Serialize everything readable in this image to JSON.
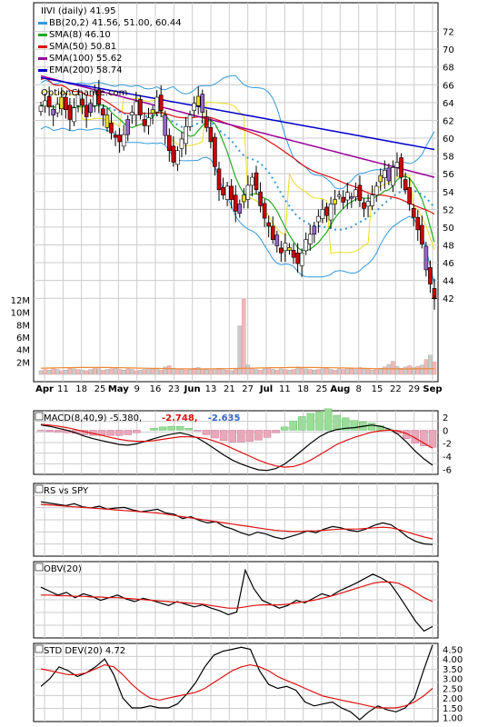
{
  "chart_data": [
    {
      "type": "candlestick",
      "title": "IIVI (daily) 41.95",
      "watermark": "OptionChance.com",
      "legend": [
        {
          "label": "BB(20,2) 41.56, 51.00, 60.44",
          "color": "#3399dd"
        },
        {
          "label": "SMA(8) 46.10",
          "color": "#22aa22"
        },
        {
          "label": "SMA(50) 50.81",
          "color": "#dd1111"
        },
        {
          "label": "SMA(100) 55.62",
          "color": "#990099"
        },
        {
          "label": "EMA(200) 58.74",
          "color": "#0000cc"
        }
      ],
      "legend_placement": "top-left",
      "price_ylim": [
        41,
        74
      ],
      "price_ticks": [
        42,
        44,
        46,
        48,
        50,
        52,
        54,
        56,
        58,
        60,
        62,
        64,
        66,
        68,
        70,
        72
      ],
      "volume_ticks": [
        "2M",
        "4M",
        "6M",
        "8M",
        "10M",
        "12M"
      ],
      "x_tick_labels": [
        "Apr",
        "11",
        "18",
        "25",
        "May",
        "9",
        "16",
        "23",
        "Jun",
        "13",
        "21",
        "27",
        "Jul",
        "11",
        "18",
        "25",
        "Aug",
        "8",
        "15",
        "22",
        "29",
        "Sep"
      ],
      "month_labels": [
        "Apr",
        "May",
        "Jun",
        "Jul",
        "Aug",
        "Sep"
      ],
      "grid": true,
      "series_close": [
        63.6,
        64.2,
        63.5,
        62.6,
        63.8,
        64.6,
        63.2,
        62.1,
        63.4,
        64.9,
        63.7,
        62.4,
        63.9,
        65.2,
        63.8,
        62.6,
        61.2,
        60.6,
        60.1,
        59.6,
        60.4,
        62.1,
        62.9,
        64.1,
        62.6,
        61.4,
        62.3,
        63.2,
        64.6,
        63.1,
        60.3,
        58.6,
        57.3,
        58.6,
        59.9,
        61.3,
        62.6,
        63.9,
        64.7,
        62.9,
        61.2,
        59.6,
        56.8,
        54.2,
        53.6,
        54.6,
        53.1,
        51.8,
        52.6,
        53.6,
        54.7,
        55.6,
        54.2,
        52.4,
        51.0,
        50.1,
        48.6,
        47.9,
        47.1,
        48.2,
        47.4,
        46.6,
        45.9,
        47.1,
        48.6,
        49.2,
        50.1,
        51.2,
        52.0,
        51.3,
        52.6,
        53.1,
        53.6,
        52.8,
        53.9,
        53.4,
        54.2,
        53.0,
        52.1,
        52.9,
        53.6,
        54.6,
        55.8,
        56.4,
        55.2,
        56.7,
        57.3,
        55.6,
        54.2,
        52.6,
        51.1,
        49.7,
        48.1,
        45.2,
        43.6,
        41.95
      ],
      "volume_m": [
        0.6,
        0.8,
        0.7,
        0.9,
        0.8,
        0.6,
        0.7,
        1.0,
        0.9,
        0.8,
        0.7,
        0.6,
        0.8,
        1.1,
        0.9,
        0.7,
        0.8,
        0.9,
        1.0,
        0.8,
        0.7,
        0.9,
        0.8,
        0.6,
        0.7,
        0.8,
        1.0,
        0.9,
        0.8,
        0.7,
        1.2,
        1.4,
        1.0,
        0.9,
        0.8,
        0.7,
        0.9,
        1.0,
        1.1,
        0.9,
        0.8,
        0.7,
        0.9,
        1.0,
        0.8,
        0.7,
        0.6,
        0.9,
        7.8,
        12.1,
        1.5,
        0.9,
        0.8,
        0.7,
        0.9,
        1.0,
        0.8,
        0.7,
        0.9,
        0.8,
        0.7,
        0.8,
        1.2,
        1.0,
        0.9,
        0.8,
        0.7,
        0.8,
        0.9,
        1.0,
        0.8,
        0.7,
        0.9,
        0.8,
        1.0,
        0.9,
        0.8,
        1.1,
        0.9,
        0.8,
        0.7,
        0.9,
        1.0,
        1.2,
        1.6,
        2.1,
        1.3,
        1.0,
        1.2,
        1.4,
        1.1,
        1.3,
        1.5,
        2.4,
        3.1,
        2.0
      ]
    },
    {
      "type": "line",
      "title": "MACD(8,40,9) -5.380, -2.748, -2.635",
      "title_parts": [
        "MACD(8,40,9) -5.380,",
        "-2.748,",
        "-2.635"
      ],
      "title_colors": [
        "#000000",
        "#dd1111",
        "#3366cc"
      ],
      "y_ticks": [
        2,
        0,
        -2,
        -4,
        -6
      ],
      "ylim": [
        -6.8,
        3
      ],
      "series": [
        {
          "color": "#000000",
          "values": [
            0.8,
            0.6,
            0.3,
            0.0,
            -0.4,
            -0.9,
            -1.3,
            -1.6,
            -1.9,
            -2.2,
            -2.3,
            -2.1,
            -1.7,
            -1.3,
            -0.9,
            -0.6,
            -0.4,
            -0.7,
            -1.2,
            -2.0,
            -2.9,
            -3.8,
            -4.6,
            -5.2,
            -5.7,
            -6.1,
            -6.2,
            -5.9,
            -5.2,
            -4.2,
            -3.1,
            -2.0,
            -1.0,
            -0.3,
            0.1,
            0.3,
            0.4,
            0.6,
            0.8,
            0.6,
            0.2,
            -0.6,
            -1.8,
            -3.2,
            -4.4,
            -5.38
          ]
        },
        {
          "color": "#dd1111",
          "values": [
            0.9,
            0.8,
            0.6,
            0.4,
            0.1,
            -0.2,
            -0.5,
            -0.8,
            -1.1,
            -1.4,
            -1.6,
            -1.7,
            -1.7,
            -1.6,
            -1.4,
            -1.2,
            -1.0,
            -1.0,
            -1.1,
            -1.3,
            -1.7,
            -2.2,
            -2.8,
            -3.4,
            -4.0,
            -4.6,
            -5.1,
            -5.5,
            -5.7,
            -5.6,
            -5.2,
            -4.6,
            -3.8,
            -3.0,
            -2.2,
            -1.6,
            -1.1,
            -0.7,
            -0.3,
            -0.1,
            0.0,
            -0.1,
            -0.5,
            -1.2,
            -2.0,
            -2.748
          ]
        }
      ],
      "histogram": [
        -0.1,
        -0.2,
        -0.3,
        -0.4,
        -0.5,
        -0.7,
        -0.8,
        -0.8,
        -0.8,
        -0.8,
        -0.7,
        -0.4,
        0.0,
        0.3,
        0.5,
        0.6,
        0.6,
        0.3,
        -0.1,
        -0.7,
        -1.2,
        -1.6,
        -1.8,
        -1.8,
        -1.7,
        -1.5,
        -1.1,
        -0.4,
        0.5,
        1.4,
        2.1,
        2.6,
        2.8,
        3.3,
        2.3,
        1.9,
        1.5,
        1.3,
        1.1,
        0.7,
        0.2,
        -0.5,
        -1.3,
        -2.0,
        -2.4,
        -2.635
      ]
    },
    {
      "type": "line",
      "title": "RS vs SPY",
      "series": [
        {
          "color": "#000000",
          "values": [
            0.82,
            0.8,
            0.78,
            0.76,
            0.79,
            0.74,
            0.72,
            0.75,
            0.7,
            0.72,
            0.73,
            0.69,
            0.66,
            0.68,
            0.7,
            0.64,
            0.62,
            0.55,
            0.58,
            0.52,
            0.48,
            0.5,
            0.42,
            0.38,
            0.32,
            0.28,
            0.33,
            0.3,
            0.25,
            0.22,
            0.26,
            0.3,
            0.35,
            0.32,
            0.38,
            0.42,
            0.4,
            0.36,
            0.34,
            0.38,
            0.44,
            0.48,
            0.45,
            0.36,
            0.25,
            0.18,
            0.14,
            0.13
          ]
        },
        {
          "color": "#dd1111",
          "values": [
            0.78,
            0.77,
            0.76,
            0.75,
            0.74,
            0.73,
            0.72,
            0.71,
            0.7,
            0.69,
            0.68,
            0.67,
            0.66,
            0.65,
            0.64,
            0.62,
            0.6,
            0.58,
            0.56,
            0.54,
            0.52,
            0.5,
            0.48,
            0.46,
            0.44,
            0.42,
            0.4,
            0.38,
            0.36,
            0.35,
            0.34,
            0.34,
            0.35,
            0.35,
            0.36,
            0.37,
            0.38,
            0.38,
            0.38,
            0.39,
            0.4,
            0.41,
            0.4,
            0.37,
            0.33,
            0.29,
            0.25,
            0.22
          ]
        }
      ]
    },
    {
      "type": "line",
      "title": "OBV(20)",
      "series": [
        {
          "color": "#000000",
          "values": [
            0.72,
            0.66,
            0.6,
            0.64,
            0.56,
            0.62,
            0.58,
            0.52,
            0.56,
            0.6,
            0.54,
            0.5,
            0.55,
            0.52,
            0.48,
            0.44,
            0.5,
            0.46,
            0.42,
            0.45,
            0.4,
            0.36,
            0.3,
            0.34,
            0.98,
            0.7,
            0.52,
            0.46,
            0.4,
            0.44,
            0.52,
            0.48,
            0.55,
            0.62,
            0.58,
            0.66,
            0.72,
            0.78,
            0.85,
            0.92,
            0.86,
            0.78,
            0.6,
            0.4,
            0.2,
            0.05,
            0.12
          ]
        },
        {
          "color": "#dd1111",
          "values": [
            0.6,
            0.6,
            0.59,
            0.59,
            0.58,
            0.58,
            0.57,
            0.57,
            0.56,
            0.56,
            0.55,
            0.54,
            0.53,
            0.52,
            0.51,
            0.5,
            0.49,
            0.48,
            0.47,
            0.46,
            0.44,
            0.42,
            0.4,
            0.4,
            0.42,
            0.44,
            0.45,
            0.45,
            0.45,
            0.46,
            0.48,
            0.5,
            0.52,
            0.55,
            0.58,
            0.62,
            0.66,
            0.7,
            0.74,
            0.78,
            0.8,
            0.8,
            0.78,
            0.72,
            0.64,
            0.56,
            0.5
          ]
        }
      ]
    },
    {
      "type": "line",
      "title": "STD DEV(20) 4.72",
      "y_ticks": [
        "4.50",
        "4.00",
        "3.50",
        "3.00",
        "2.50",
        "2.00",
        "1.50",
        "1.00"
      ],
      "ylim": [
        0.8,
        4.8
      ],
      "series": [
        {
          "color": "#000000",
          "values": [
            2.6,
            3.0,
            3.6,
            3.4,
            3.1,
            3.3,
            3.6,
            4.0,
            3.2,
            2.0,
            1.5,
            1.5,
            1.6,
            1.5,
            1.5,
            1.7,
            2.2,
            2.8,
            3.6,
            4.2,
            4.4,
            4.5,
            4.6,
            4.5,
            3.4,
            2.7,
            2.5,
            2.6,
            2.4,
            1.8,
            1.6,
            1.7,
            1.8,
            1.5,
            1.3,
            0.9,
            1.3,
            1.6,
            1.4,
            1.3,
            1.5,
            2.0,
            3.4,
            4.72
          ]
        },
        {
          "color": "#dd1111",
          "values": [
            3.5,
            3.4,
            3.3,
            3.2,
            3.2,
            3.3,
            3.5,
            3.7,
            3.6,
            3.2,
            2.7,
            2.3,
            2.0,
            1.9,
            2.0,
            2.1,
            2.2,
            2.3,
            2.5,
            2.8,
            3.1,
            3.4,
            3.6,
            3.7,
            3.6,
            3.4,
            3.1,
            2.9,
            2.7,
            2.5,
            2.3,
            2.1,
            2.0,
            1.9,
            1.8,
            1.7,
            1.6,
            1.5,
            1.5,
            1.5,
            1.6,
            1.8,
            2.1,
            2.5
          ]
        }
      ]
    }
  ]
}
